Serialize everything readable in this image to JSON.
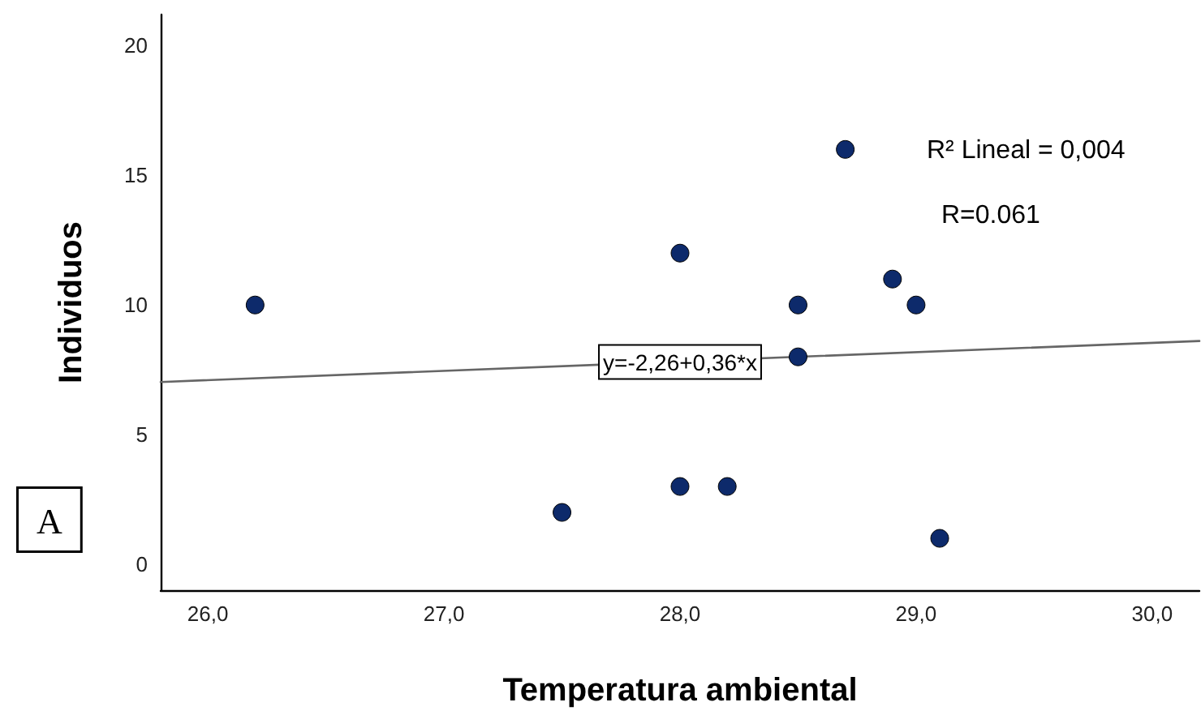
{
  "chart_data": {
    "type": "scatter",
    "xlabel": "Temperatura ambiental",
    "ylabel": "Individuos",
    "series": [
      {
        "color": "#0d2a6b",
        "x": [
          26.2,
          28.0,
          28.7,
          28.5,
          28.5,
          28.9,
          29.0,
          27.5,
          28.0,
          28.2,
          29.1
        ],
        "values": [
          10,
          12,
          16,
          10,
          8,
          11,
          10,
          2,
          3,
          3,
          1
        ]
      },
      {
        "type": "line",
        "color": "#666666",
        "marker": "none",
        "x": [
          25.8,
          30.2
        ],
        "values": [
          7.03,
          8.61
        ]
      }
    ],
    "xlim": [
      25.8,
      30.2
    ],
    "xticks": [
      {
        "value": 26,
        "label": "26,0"
      },
      {
        "value": 27,
        "label": "27,0"
      },
      {
        "value": 28,
        "label": "28,0"
      },
      {
        "value": 29,
        "label": "29,0"
      },
      {
        "value": 30,
        "label": "30,0"
      }
    ],
    "ylim": [
      -1,
      21.2
    ],
    "yticks": [
      0,
      5,
      10,
      15,
      20
    ],
    "grid": false,
    "marker": "circle",
    "annotations": [
      "R² Lineal = 0,004",
      "R=0.061",
      {
        "text": "y=-2,26+0,36*x",
        "x": 28.0,
        "y": 7.8
      },
      "A"
    ]
  }
}
